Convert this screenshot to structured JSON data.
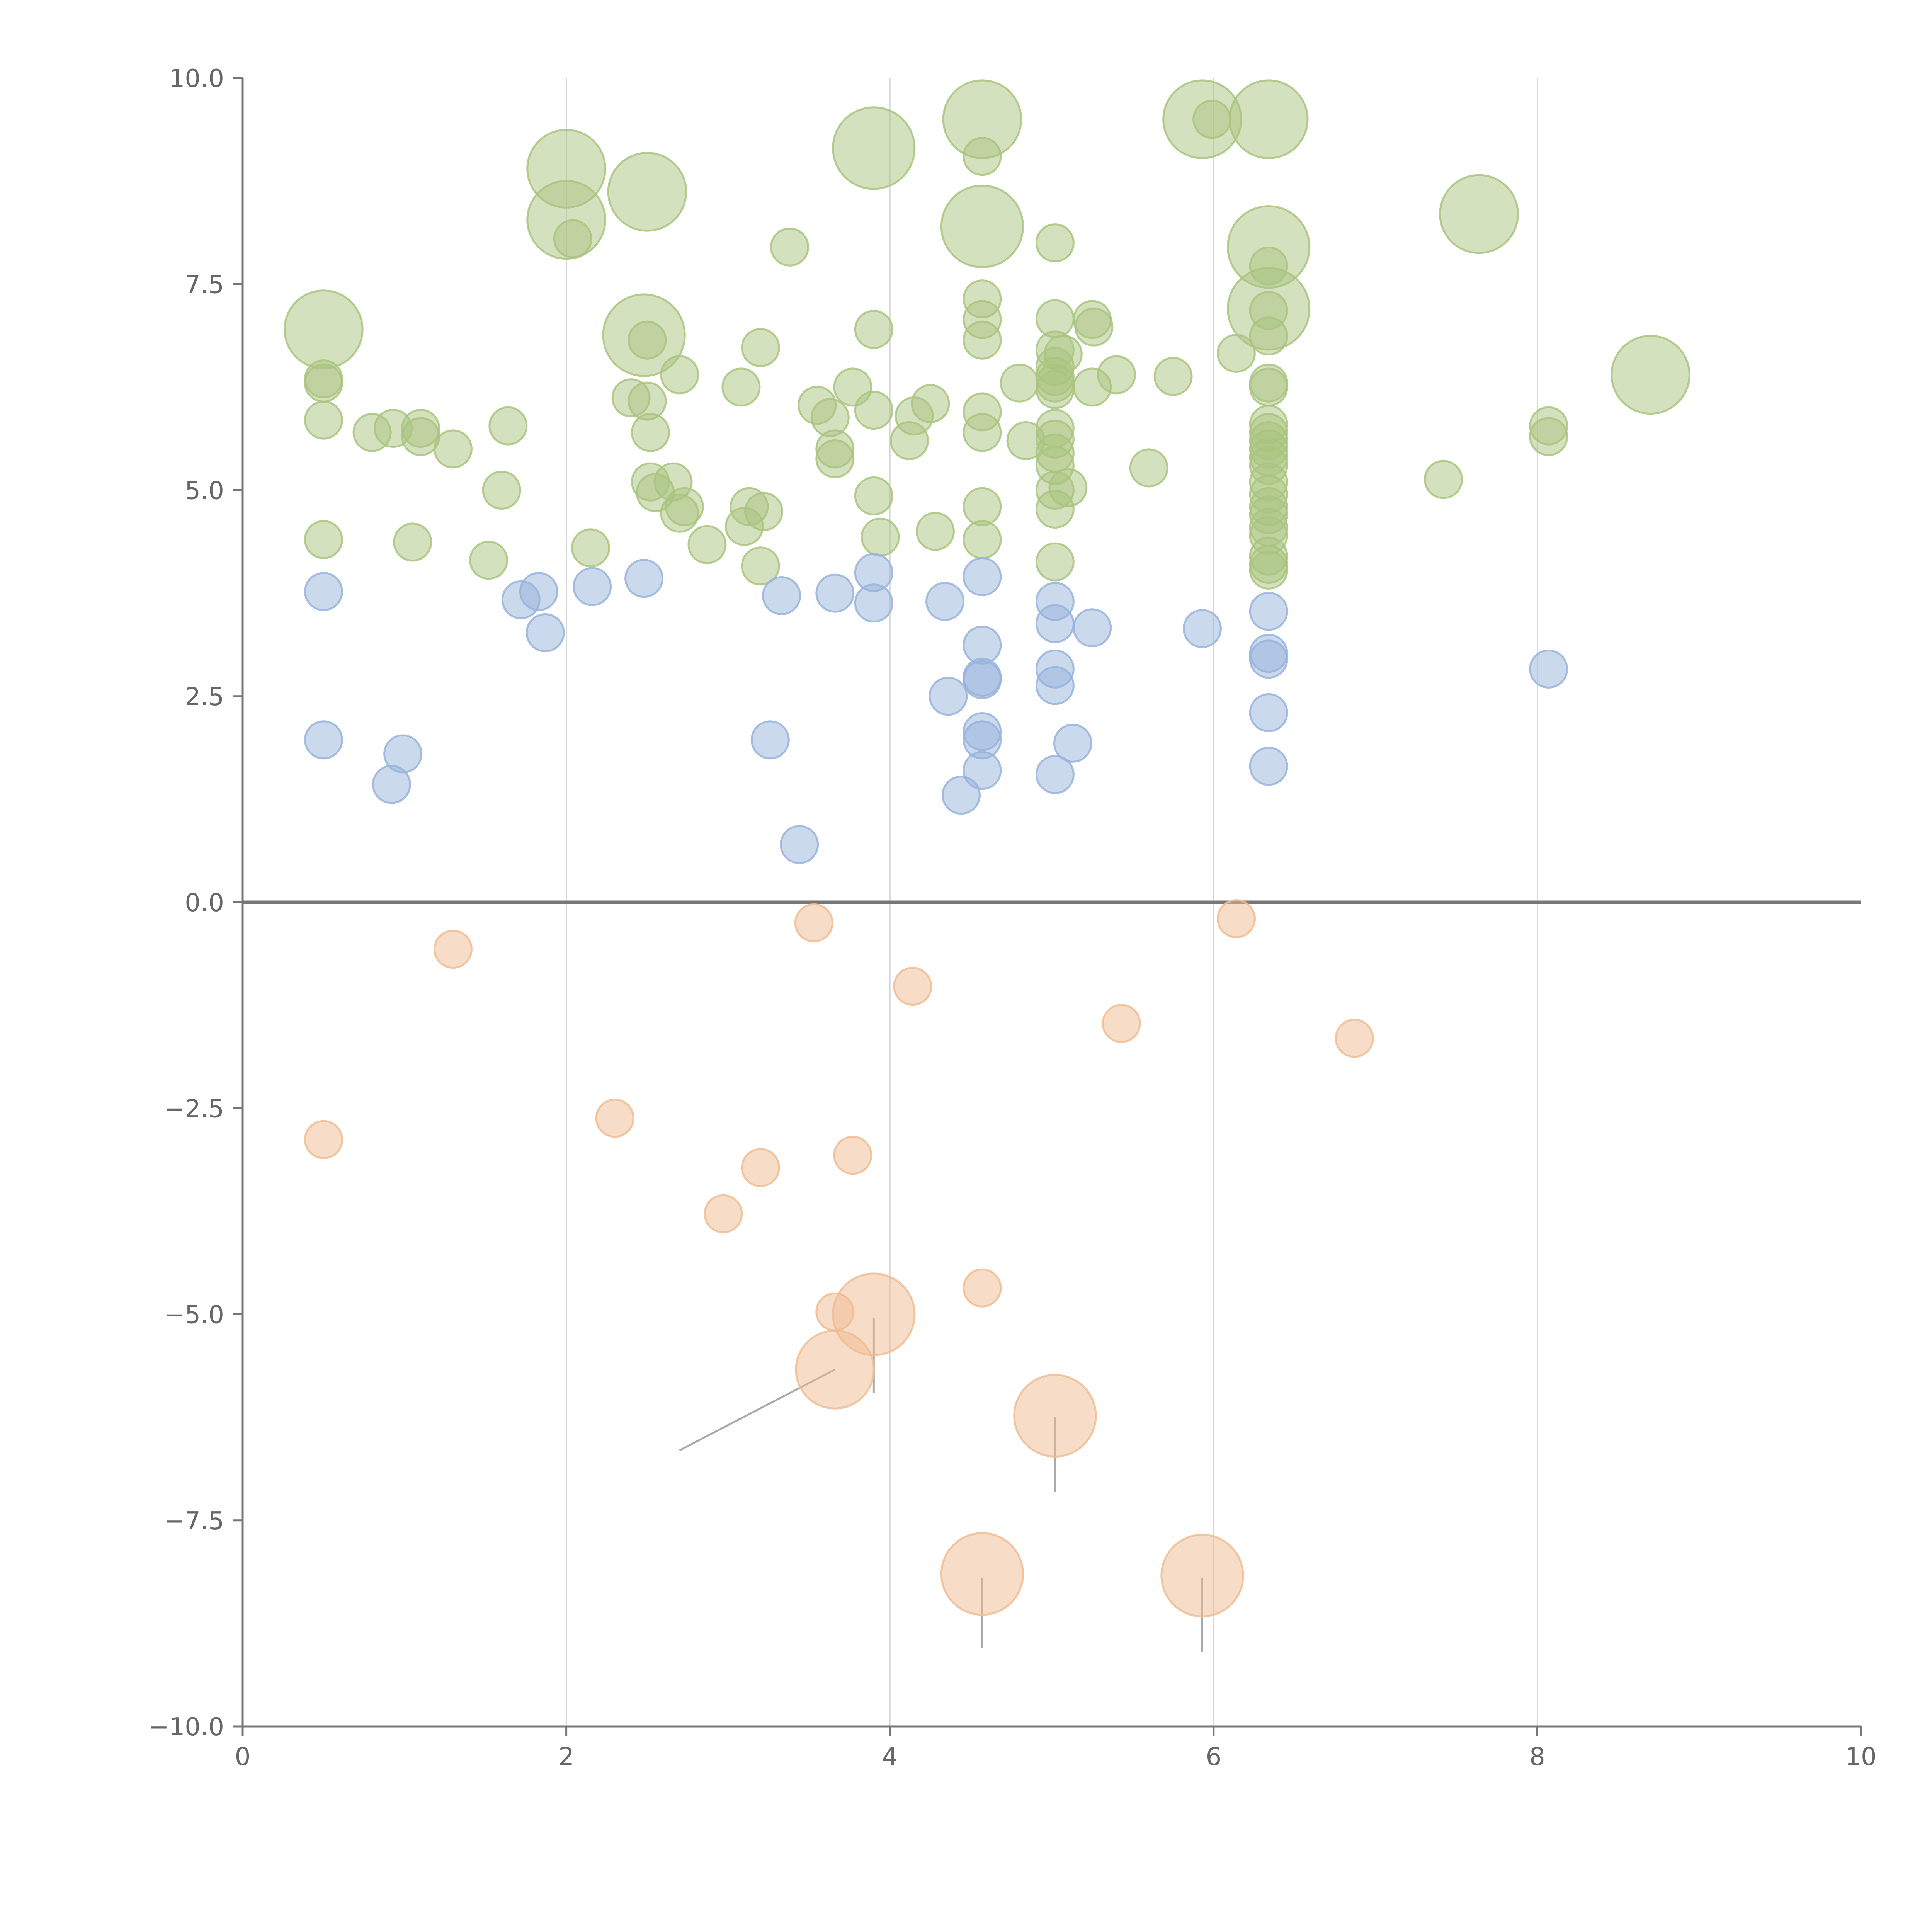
{
  "chart_data": {
    "type": "scatter",
    "xlim": [
      0,
      10
    ],
    "ylim": [
      -10,
      10
    ],
    "x_ticks": [
      "0",
      "2",
      "4",
      "6",
      "8",
      "10"
    ],
    "y_ticks": [
      "−10.0",
      "−7.5",
      "−5.0",
      "−2.5",
      "0.0",
      "2.5",
      "5.0",
      "7.5",
      "10.0"
    ],
    "grid_x": [
      2,
      4,
      6,
      8
    ],
    "zero_line": 0,
    "series": [
      {
        "color": "#a9c47f",
        "points": [
          [
            0.5,
            6.95,
            2.1
          ],
          [
            0.5,
            6.35,
            1
          ],
          [
            0.5,
            6.3,
            1
          ],
          [
            0.5,
            5.85,
            1
          ],
          [
            0.5,
            4.4,
            1
          ],
          [
            0.8,
            5.7,
            1
          ],
          [
            0.93,
            5.75,
            1
          ],
          [
            1.05,
            4.37,
            1
          ],
          [
            1.1,
            5.75,
            1
          ],
          [
            1.1,
            5.65,
            1
          ],
          [
            1.3,
            5.5,
            1
          ],
          [
            1.52,
            4.15,
            1
          ],
          [
            1.6,
            5.0,
            1
          ],
          [
            1.64,
            5.78,
            1
          ],
          [
            2.0,
            8.9,
            2.1
          ],
          [
            2.0,
            8.28,
            2.1
          ],
          [
            2.04,
            8.05,
            1
          ],
          [
            2.15,
            4.3,
            1
          ],
          [
            2.4,
            6.12,
            1
          ],
          [
            2.48,
            6.88,
            2.2
          ],
          [
            2.5,
            8.62,
            2.1
          ],
          [
            2.5,
            6.82,
            1
          ],
          [
            2.5,
            6.08,
            1
          ],
          [
            2.52,
            5.7,
            1
          ],
          [
            2.52,
            5.1,
            1
          ],
          [
            2.55,
            4.97,
            1
          ],
          [
            2.66,
            5.1,
            1
          ],
          [
            2.7,
            6.4,
            1
          ],
          [
            2.7,
            4.72,
            1
          ],
          [
            2.73,
            4.8,
            1
          ],
          [
            2.87,
            4.34,
            1
          ],
          [
            3.08,
            6.25,
            1
          ],
          [
            3.1,
            4.56,
            1
          ],
          [
            3.13,
            4.8,
            1
          ],
          [
            3.2,
            4.08,
            1
          ],
          [
            3.2,
            6.73,
            1
          ],
          [
            3.22,
            4.74,
            1
          ],
          [
            3.38,
            7.95,
            1
          ],
          [
            3.55,
            6.03,
            1
          ],
          [
            3.63,
            5.88,
            1
          ],
          [
            3.66,
            5.5,
            1
          ],
          [
            3.66,
            5.38,
            1
          ],
          [
            3.77,
            6.25,
            1
          ],
          [
            3.9,
            9.15,
            2.2
          ],
          [
            3.9,
            6.95,
            1
          ],
          [
            3.9,
            5.97,
            1
          ],
          [
            3.9,
            4.93,
            1
          ],
          [
            3.94,
            4.43,
            1
          ],
          [
            4.12,
            5.6,
            1
          ],
          [
            4.15,
            5.9,
            1
          ],
          [
            4.25,
            6.05,
            1
          ],
          [
            4.28,
            4.5,
            1
          ],
          [
            4.57,
            9.5,
            2.1
          ],
          [
            4.57,
            9.05,
            1
          ],
          [
            4.57,
            8.2,
            2.2
          ],
          [
            4.57,
            7.32,
            1
          ],
          [
            4.57,
            7.07,
            1
          ],
          [
            4.57,
            6.82,
            1
          ],
          [
            4.57,
            5.95,
            1
          ],
          [
            4.57,
            5.7,
            1
          ],
          [
            4.57,
            4.8,
            1
          ],
          [
            4.57,
            4.4,
            1
          ],
          [
            4.8,
            6.3,
            1
          ],
          [
            4.84,
            5.6,
            1
          ],
          [
            5.02,
            8.0,
            1
          ],
          [
            5.02,
            7.08,
            1
          ],
          [
            5.02,
            6.7,
            1
          ],
          [
            5.02,
            6.5,
            1
          ],
          [
            5.02,
            6.38,
            1
          ],
          [
            5.02,
            6.3,
            1
          ],
          [
            5.02,
            6.22,
            1
          ],
          [
            5.02,
            5.75,
            1
          ],
          [
            5.02,
            5.62,
            1
          ],
          [
            5.02,
            5.45,
            1
          ],
          [
            5.02,
            5.3,
            1
          ],
          [
            5.02,
            5.0,
            1
          ],
          [
            5.02,
            4.77,
            1
          ],
          [
            5.02,
            4.13,
            1
          ],
          [
            5.07,
            6.65,
            1
          ],
          [
            5.1,
            5.03,
            1
          ],
          [
            5.25,
            7.07,
            1
          ],
          [
            5.26,
            6.98,
            1
          ],
          [
            5.25,
            6.25,
            1
          ],
          [
            5.4,
            6.4,
            1
          ],
          [
            5.6,
            5.27,
            1
          ],
          [
            5.75,
            6.38,
            1
          ],
          [
            5.93,
            9.5,
            2.1
          ],
          [
            5.99,
            9.5,
            1
          ],
          [
            6.14,
            6.66,
            1
          ],
          [
            6.34,
            9.5,
            2.1
          ],
          [
            6.34,
            7.95,
            2.2
          ],
          [
            6.34,
            7.72,
            1
          ],
          [
            6.34,
            7.2,
            2.2
          ],
          [
            6.34,
            7.18,
            1
          ],
          [
            6.34,
            6.87,
            1
          ],
          [
            6.34,
            6.3,
            1
          ],
          [
            6.34,
            6.25,
            1
          ],
          [
            6.34,
            5.8,
            1
          ],
          [
            6.34,
            5.7,
            1
          ],
          [
            6.34,
            5.6,
            1
          ],
          [
            6.34,
            5.5,
            1
          ],
          [
            6.34,
            5.4,
            1
          ],
          [
            6.34,
            5.3,
            1
          ],
          [
            6.34,
            5.1,
            1
          ],
          [
            6.34,
            4.95,
            1
          ],
          [
            6.34,
            4.8,
            1
          ],
          [
            6.34,
            4.7,
            1
          ],
          [
            6.34,
            4.55,
            1
          ],
          [
            6.34,
            4.45,
            1
          ],
          [
            6.34,
            4.2,
            1
          ],
          [
            6.34,
            4.1,
            1
          ],
          [
            6.34,
            4.03,
            1
          ],
          [
            7.42,
            5.13,
            1
          ],
          [
            7.64,
            8.35,
            2.1
          ],
          [
            8.07,
            5.78,
            1
          ],
          [
            8.07,
            5.65,
            1
          ],
          [
            8.7,
            6.4,
            2.1
          ]
        ]
      },
      {
        "color": "#98b3dc",
        "points": [
          [
            0.5,
            3.77,
            1
          ],
          [
            0.5,
            1.97,
            1
          ],
          [
            0.92,
            1.43,
            1
          ],
          [
            0.99,
            1.8,
            1
          ],
          [
            1.72,
            3.67,
            1
          ],
          [
            1.83,
            3.77,
            1
          ],
          [
            1.87,
            3.27,
            1
          ],
          [
            2.16,
            3.83,
            1
          ],
          [
            2.48,
            3.93,
            1
          ],
          [
            3.26,
            1.97,
            1
          ],
          [
            3.33,
            3.72,
            1
          ],
          [
            3.44,
            0.7,
            1
          ],
          [
            3.66,
            3.75,
            1
          ],
          [
            3.9,
            4.0,
            1
          ],
          [
            3.9,
            3.63,
            1
          ],
          [
            4.34,
            3.65,
            1
          ],
          [
            4.36,
            2.5,
            1
          ],
          [
            4.44,
            1.3,
            1
          ],
          [
            4.57,
            3.95,
            1
          ],
          [
            4.57,
            3.12,
            1
          ],
          [
            4.57,
            2.73,
            1
          ],
          [
            4.57,
            2.7,
            1
          ],
          [
            4.57,
            2.07,
            1
          ],
          [
            4.57,
            1.97,
            1
          ],
          [
            4.57,
            1.6,
            1
          ],
          [
            5.02,
            3.65,
            1
          ],
          [
            5.02,
            3.38,
            1
          ],
          [
            5.02,
            2.83,
            1
          ],
          [
            5.02,
            2.63,
            1
          ],
          [
            5.02,
            1.55,
            1
          ],
          [
            5.13,
            1.93,
            1
          ],
          [
            5.25,
            3.33,
            1
          ],
          [
            5.93,
            3.32,
            1
          ],
          [
            6.34,
            3.53,
            1
          ],
          [
            6.34,
            3.02,
            1
          ],
          [
            6.34,
            2.95,
            1
          ],
          [
            6.34,
            2.3,
            1
          ],
          [
            6.34,
            1.65,
            1
          ],
          [
            8.07,
            2.83,
            1
          ]
        ]
      },
      {
        "color": "#f0bc92",
        "points": [
          [
            0.5,
            -2.88,
            1
          ],
          [
            1.3,
            -0.57,
            1
          ],
          [
            2.3,
            -2.62,
            1
          ],
          [
            2.97,
            -3.78,
            1
          ],
          [
            3.2,
            -3.22,
            1
          ],
          [
            3.53,
            -0.25,
            1
          ],
          [
            3.66,
            -4.97,
            1
          ],
          [
            3.66,
            -5.67,
            2.1
          ],
          [
            3.77,
            -3.07,
            1
          ],
          [
            3.9,
            -5.0,
            2.2
          ],
          [
            4.14,
            -1.02,
            1
          ],
          [
            4.57,
            -4.68,
            1
          ],
          [
            4.57,
            -8.15,
            2.2
          ],
          [
            5.02,
            -6.23,
            2.2
          ],
          [
            5.43,
            -1.47,
            1
          ],
          [
            5.93,
            -8.17,
            2.2
          ],
          [
            6.14,
            -0.2,
            1
          ],
          [
            6.87,
            -1.65,
            1
          ]
        ]
      }
    ],
    "leaders": [
      [
        3.66,
        -5.67,
        2.7,
        -6.65
      ],
      [
        3.9,
        -5.05,
        3.9,
        -5.95
      ],
      [
        5.02,
        -6.25,
        5.02,
        -7.15
      ],
      [
        4.57,
        -8.2,
        4.57,
        -9.05
      ],
      [
        5.93,
        -8.2,
        5.93,
        -9.1
      ]
    ]
  }
}
